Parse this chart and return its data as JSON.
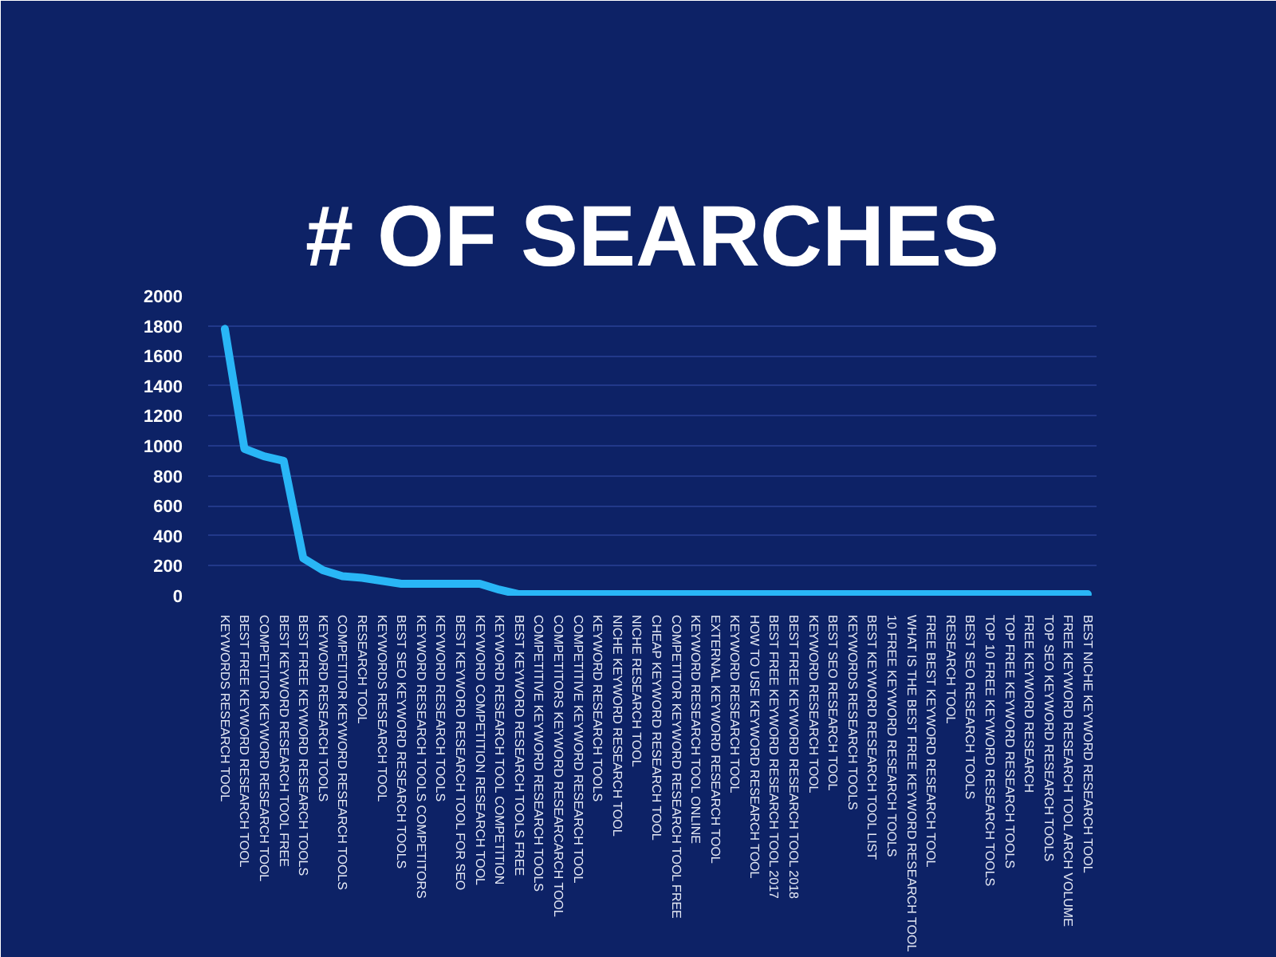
{
  "chart_data": {
    "type": "line",
    "title": "# OF SEARCHES",
    "categories": [
      "KEYWORDS RESEARCH TOOL",
      "BEST FREE KEYWORD RESEARCH TOOL",
      "COMPETITOR KEYWORD RESEARCH TOOL",
      "BEST KEYWORD RESEARCH TOOL FREE",
      "BEST FREE KEYWORD RESEARCH TOOLS",
      "KEYWORD RESEARCH TOOLS",
      "COMPETITOR KEYWORD RESEARCH TOOLS",
      "RESEARCH TOOL",
      "KEYWORDS RESEARCH TOOL",
      "BEST SEO KEYWORD RESEARCH TOOLS",
      "KEYWORD RESEARCH TOOLS COMPETITORS",
      "KEYWORD RESEARCH TOOLS",
      "BEST KEYWORD RESEARCH TOOL FOR SEO",
      "KEYWORD COMPETITION RESEARCH TOOL",
      "KEYWORD RESEARCH TOOL COMPETITION",
      "BEST KEYWORD RESEARCH TOOLS FREE",
      "COMPETITIVE KEYWORD RESEARCH TOOLS",
      "COMPETITORS KEYWORD RESEARCARCH TOOL",
      "COMPETITIVE KEYWORD RESEARCH TOOL",
      "KEYWORD RESEARCH TOOLS",
      "NICHE KEYWORD RESEARCH TOOL",
      "NICHE RESEARCH TOOL",
      "CHEAP KEYWORD RESEARCH TOOL",
      "COMPETITOR KEYWORD RESEARCH TOOL FREE",
      "KEYWORD RESEARCH TOOL ONLINE",
      "EXTERNAL KEYWORD RESEARCH TOOL",
      "KEYWORD RESEARCH TOOL",
      "HOW TO USE KEYWORD RESEARCH TOOL",
      "BEST FREE KEYWORD RESEARCH TOOL 2017",
      "BEST FREE KEYWORD RESEARCH TOOL 2018",
      "KEYWORD RESEARCH TOOL",
      "BEST SEO RESEARCH TOOL",
      "KEYWORDS RESEARCH TOOLS",
      "BEST KEYWORD RESEARCH TOOL LIST",
      "10 FREE KEYWORD RESEARCH TOOLS",
      "WHAT IS THE BEST FREE KEYWORD RESEARCH TOOL",
      "FREE BEST KEYWORD RESEARCH TOOL",
      "RESEARCH TOOL",
      "BEST SEO RESEARCH TOOLS",
      "TOP 10 FREE KEYWORD RESEARCH TOOLS",
      "TOP FREE KEYWORD RESEARCH TOOLS",
      "FREE KEYWORD RESEARCH",
      "TOP SEO KEYWORD RESEARCH TOOLS",
      "FREE KEYWORD RESEARCH TOOL ARCH VOLUME",
      "BEST NICHE KEYWORD RESEARCH TOOL"
    ],
    "values": [
      1780,
      980,
      930,
      900,
      250,
      170,
      130,
      120,
      100,
      80,
      80,
      80,
      80,
      80,
      40,
      10,
      10,
      10,
      10,
      10,
      10,
      10,
      10,
      10,
      10,
      10,
      10,
      10,
      10,
      10,
      10,
      10,
      10,
      10,
      10,
      10,
      10,
      10,
      10,
      10,
      10,
      10,
      10,
      10,
      10
    ],
    "color": "#29b6f6",
    "line_style": "solid",
    "ylim": [
      0,
      2000
    ],
    "yticks": [
      0,
      200,
      400,
      600,
      800,
      1000,
      1200,
      1400,
      1600,
      1800,
      2000
    ],
    "grid": "y"
  }
}
